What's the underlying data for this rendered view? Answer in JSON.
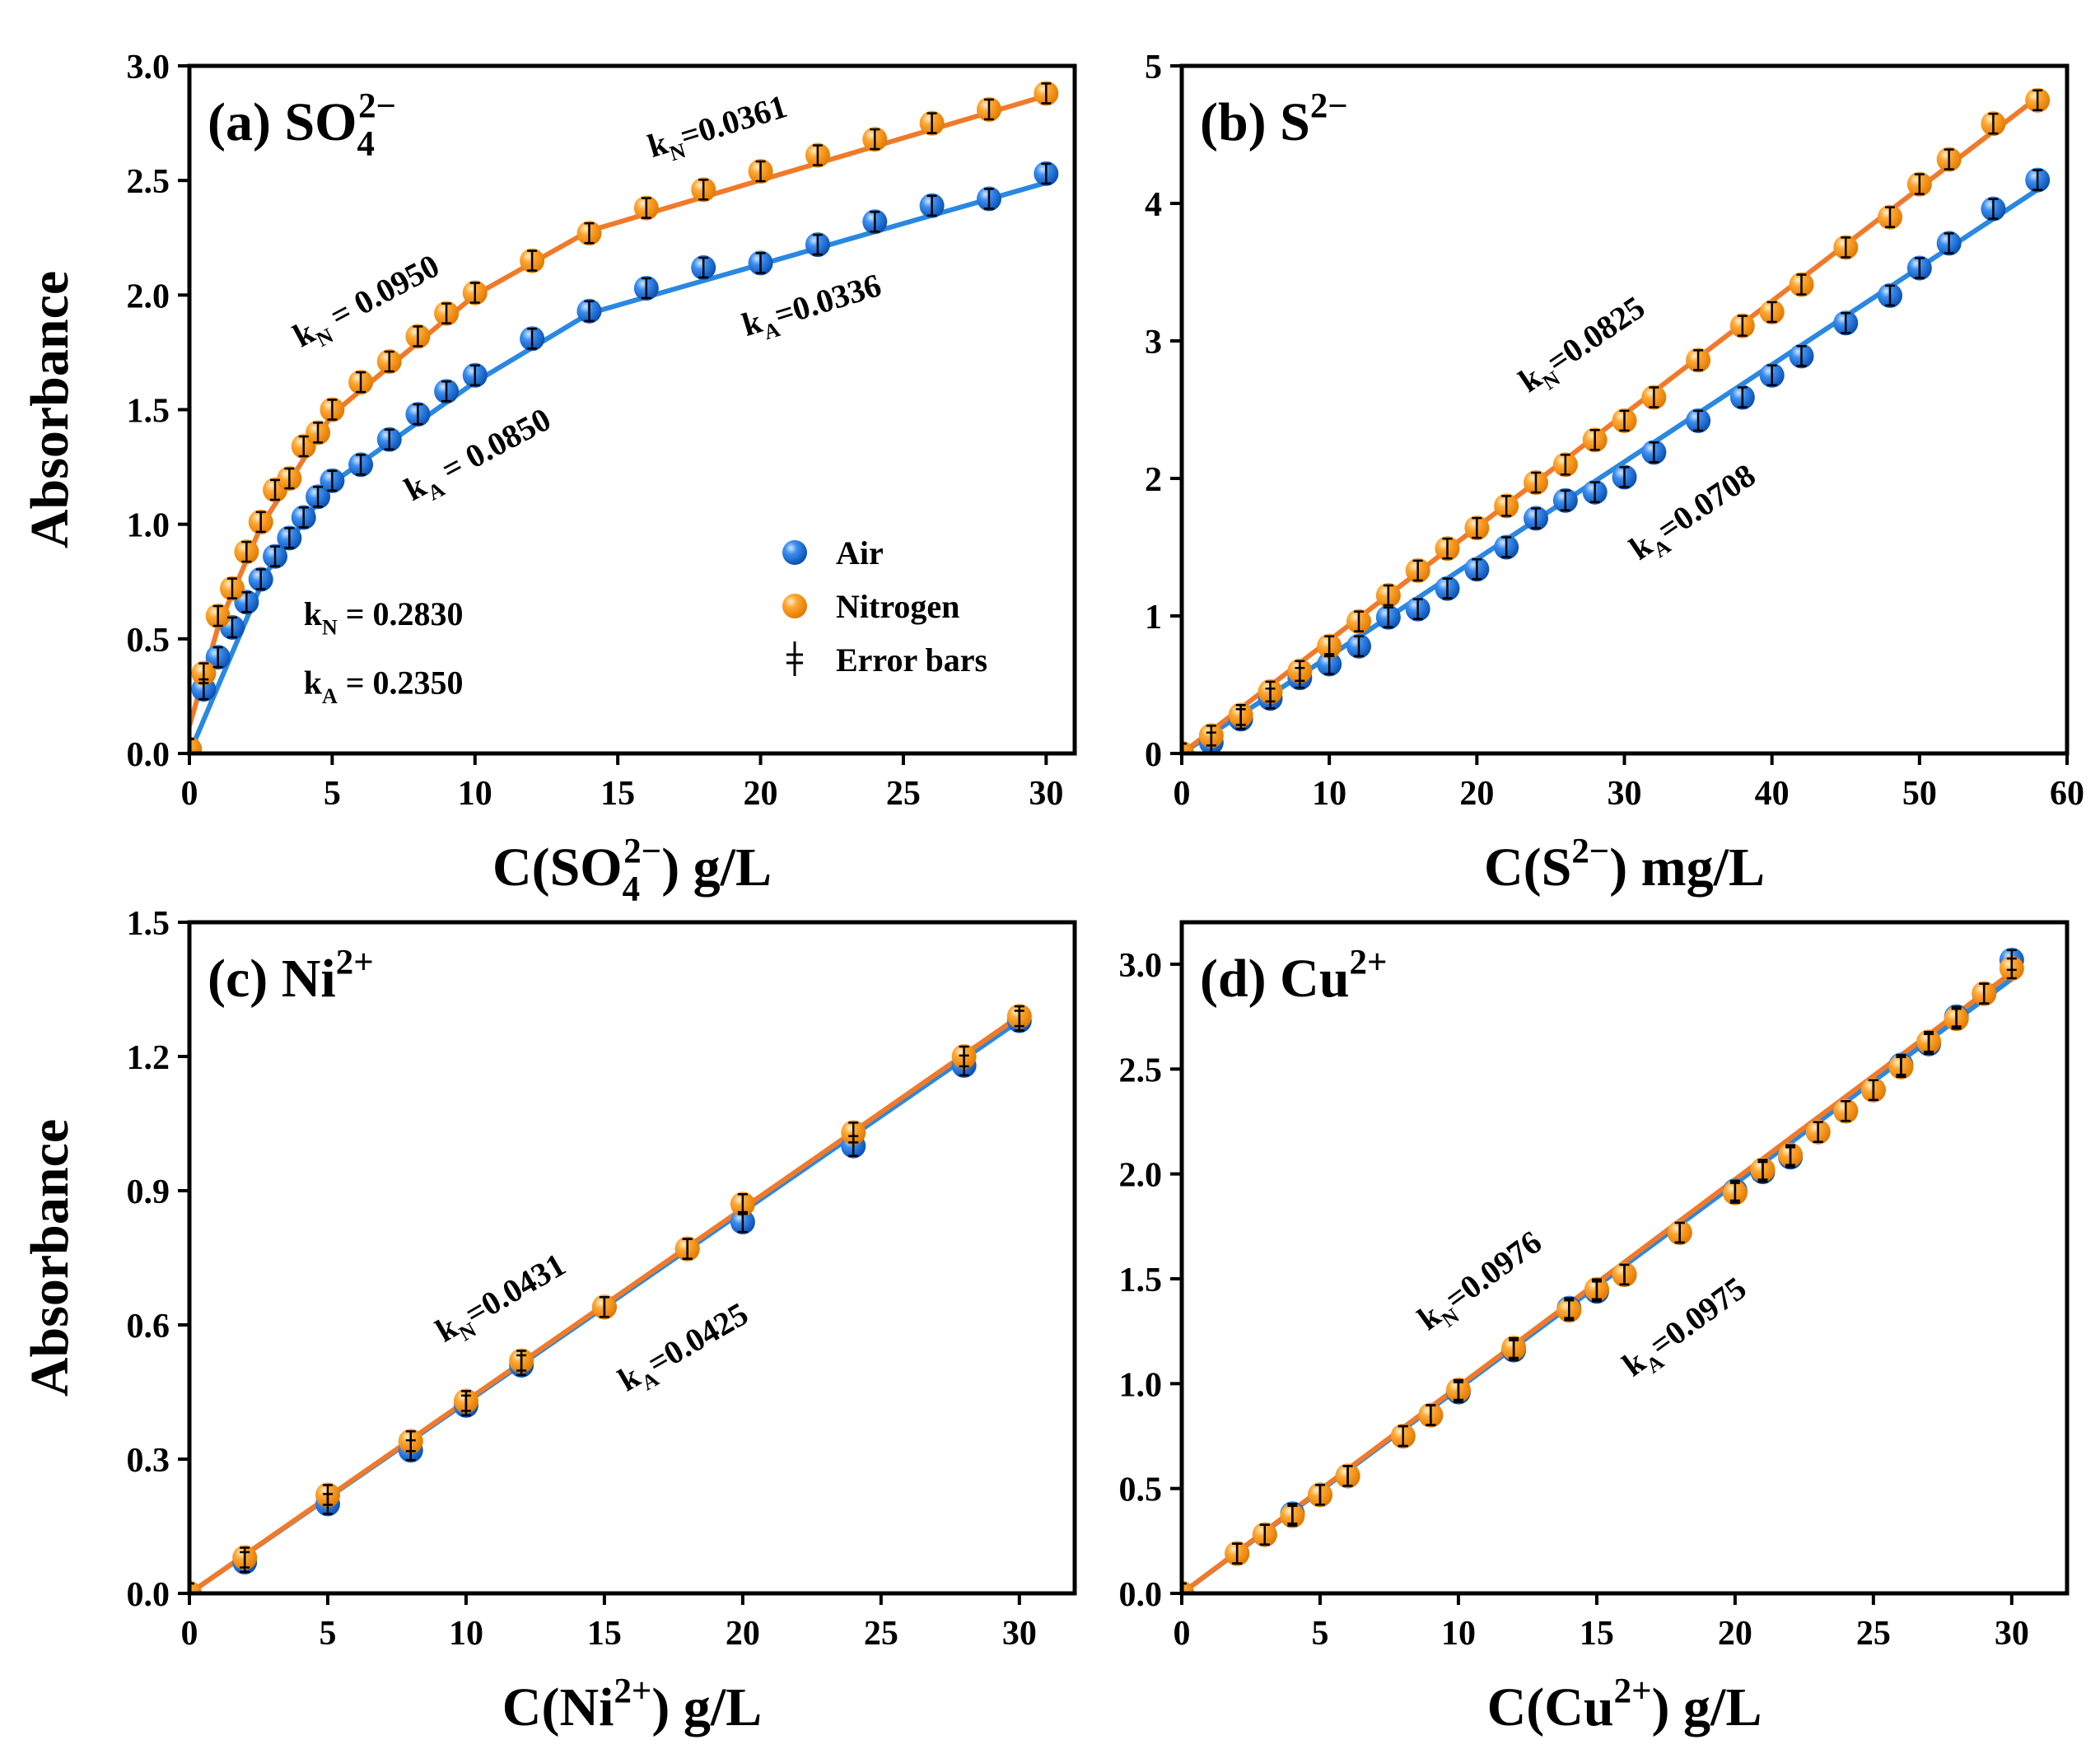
{
  "colors": {
    "air": "#1f6fd6",
    "air_line": "#2a88e0",
    "nitrogen": "#ff9a1f",
    "nitrogen_line": "#f07a2a",
    "error_bar": "#000000"
  },
  "chart_data": [
    {
      "id": "a",
      "type": "scatter",
      "title": {
        "main": "(a) SO",
        "sub": "4",
        "sup": "2−"
      },
      "xlabel": {
        "main": "C(SO",
        "sub": "4",
        "sup": "2−",
        "tail": ") g/L"
      },
      "ylabel": "Absorbance",
      "xlim": [
        0,
        31
      ],
      "ylim": [
        0,
        3.0
      ],
      "xticks": [
        0,
        5,
        10,
        15,
        20,
        25,
        30
      ],
      "yticks": [
        0.0,
        0.5,
        1.0,
        1.5,
        2.0,
        2.5,
        3.0
      ],
      "xtick_labels": [
        "0",
        "5",
        "10",
        "15",
        "20",
        "25",
        "30"
      ],
      "ytick_labels": [
        "0.0",
        "0.5",
        "1.0",
        "1.5",
        "2.0",
        "2.5",
        "3.0"
      ],
      "series": [
        {
          "name": "Air",
          "x": [
            0,
            0.5,
            1,
            1.5,
            2,
            2.5,
            3,
            3.5,
            4,
            4.5,
            5,
            6,
            7,
            8,
            9,
            10,
            12,
            14,
            16,
            18,
            20,
            22,
            24,
            26,
            28,
            30
          ],
          "y": [
            0.02,
            0.28,
            0.42,
            0.55,
            0.66,
            0.76,
            0.86,
            0.94,
            1.03,
            1.12,
            1.19,
            1.26,
            1.37,
            1.48,
            1.58,
            1.65,
            1.81,
            1.93,
            2.03,
            2.12,
            2.14,
            2.22,
            2.32,
            2.39,
            2.42,
            2.53
          ],
          "fit": [
            [
              0,
              0
            ],
            [
              2.7,
              0.79
            ],
            [
              5,
              1.18
            ],
            [
              10,
              1.62
            ],
            [
              14,
              1.92
            ],
            [
              30,
              2.49
            ]
          ]
        },
        {
          "name": "Nitrogen",
          "x": [
            0,
            0.5,
            1,
            1.5,
            2,
            2.5,
            3,
            3.5,
            4,
            4.5,
            5,
            6,
            7,
            8,
            9,
            10,
            12,
            14,
            16,
            18,
            20,
            22,
            24,
            26,
            28,
            30
          ],
          "y": [
            0.02,
            0.35,
            0.6,
            0.72,
            0.88,
            1.01,
            1.15,
            1.2,
            1.34,
            1.4,
            1.5,
            1.62,
            1.71,
            1.82,
            1.92,
            2.01,
            2.15,
            2.27,
            2.38,
            2.46,
            2.54,
            2.61,
            2.68,
            2.75,
            2.81,
            2.88
          ],
          "fit": [
            [
              0,
              0.12
            ],
            [
              1,
              0.55
            ],
            [
              2.5,
              0.99
            ],
            [
              5,
              1.48
            ],
            [
              10,
              2.0
            ],
            [
              14,
              2.28
            ],
            [
              30,
              2.87
            ]
          ]
        }
      ],
      "annotations": [
        {
          "text": "k",
          "sub": "N",
          "tail": " = 0.2830",
          "x": 4,
          "y": 0.56,
          "angle": 0
        },
        {
          "text": "k",
          "sub": "A",
          "tail": " = 0.2350",
          "x": 4,
          "y": 0.26,
          "angle": 0
        },
        {
          "text": "k",
          "sub": "N",
          "tail": " = 0.0950",
          "x": 3.9,
          "y": 1.77,
          "angle": -28
        },
        {
          "text": "k",
          "sub": "A",
          "tail": " = 0.0850",
          "x": 7.8,
          "y": 1.1,
          "angle": -28
        },
        {
          "text": "k",
          "sub": "N",
          "tail": "=0.0361",
          "x": 16.2,
          "y": 2.6,
          "angle": -17
        },
        {
          "text": "k",
          "sub": "A",
          "tail": "=0.0336",
          "x": 19.5,
          "y": 1.82,
          "angle": -17
        }
      ],
      "legend": {
        "position": "lower-right",
        "items": [
          "Air",
          "Nitrogen",
          "Error bars"
        ]
      }
    },
    {
      "id": "b",
      "type": "scatter",
      "title": {
        "main": "(b) S",
        "sub": "",
        "sup": "2−"
      },
      "xlabel": {
        "main": "C(S",
        "sub": "",
        "sup": "2−",
        "tail": ") mg/L"
      },
      "ylabel": "",
      "xlim": [
        0,
        60
      ],
      "ylim": [
        0,
        5
      ],
      "xticks": [
        0,
        10,
        20,
        30,
        40,
        50,
        60
      ],
      "yticks": [
        0,
        1,
        2,
        3,
        4,
        5
      ],
      "xtick_labels": [
        "0",
        "10",
        "20",
        "30",
        "40",
        "50",
        "60"
      ],
      "ytick_labels": [
        "0",
        "1",
        "2",
        "3",
        "4",
        "5"
      ],
      "series": [
        {
          "name": "Air",
          "x": [
            0,
            2,
            4,
            6,
            8,
            10,
            12,
            14,
            16,
            18,
            20,
            22,
            24,
            26,
            28,
            30,
            32,
            35,
            38,
            40,
            42,
            45,
            48,
            50,
            52,
            55,
            58
          ],
          "y": [
            0,
            0.08,
            0.25,
            0.4,
            0.55,
            0.65,
            0.78,
            0.99,
            1.05,
            1.2,
            1.34,
            1.5,
            1.71,
            1.84,
            1.9,
            2.01,
            2.19,
            2.42,
            2.59,
            2.75,
            2.89,
            3.13,
            3.33,
            3.53,
            3.71,
            3.96,
            4.17
          ],
          "fit": [
            [
              0,
              0
            ],
            [
              58,
              4.1
            ]
          ]
        },
        {
          "name": "Nitrogen",
          "x": [
            0,
            2,
            4,
            6,
            8,
            10,
            12,
            14,
            16,
            18,
            20,
            22,
            24,
            26,
            28,
            30,
            32,
            35,
            38,
            40,
            42,
            45,
            48,
            50,
            52,
            55,
            58
          ],
          "y": [
            0,
            0.13,
            0.28,
            0.45,
            0.6,
            0.78,
            0.96,
            1.15,
            1.33,
            1.49,
            1.64,
            1.8,
            1.97,
            2.1,
            2.28,
            2.42,
            2.59,
            2.86,
            3.11,
            3.21,
            3.41,
            3.68,
            3.9,
            4.14,
            4.32,
            4.58,
            4.75
          ],
          "fit": [
            [
              0,
              0
            ],
            [
              58,
              4.77
            ]
          ]
        }
      ],
      "annotations": [
        {
          "text": "k",
          "sub": "N",
          "tail": "=0.0825",
          "x": 23.5,
          "y": 2.62,
          "angle": -34
        },
        {
          "text": "k",
          "sub": "A",
          "tail": "=0.0708",
          "x": 31,
          "y": 1.4,
          "angle": -34
        }
      ]
    },
    {
      "id": "c",
      "type": "scatter",
      "title": {
        "main": "(c) Ni",
        "sub": "",
        "sup": "2+"
      },
      "xlabel": {
        "main": "C(Ni",
        "sub": "",
        "sup": "2+",
        "tail": ") g/L"
      },
      "ylabel": "Absorbance",
      "xlim": [
        0,
        32
      ],
      "ylim": [
        0,
        1.5
      ],
      "xticks": [
        0,
        5,
        10,
        15,
        20,
        25,
        30
      ],
      "yticks": [
        0.0,
        0.3,
        0.6,
        0.9,
        1.2,
        1.5
      ],
      "xtick_labels": [
        "0",
        "5",
        "10",
        "15",
        "20",
        "25",
        "30"
      ],
      "ytick_labels": [
        "0.0",
        "0.3",
        "0.6",
        "0.9",
        "1.2",
        "1.5"
      ],
      "series": [
        {
          "name": "Air",
          "x": [
            0,
            2,
            5,
            8,
            10,
            12,
            15,
            18,
            20,
            24,
            28,
            30
          ],
          "y": [
            0.0,
            0.07,
            0.2,
            0.32,
            0.42,
            0.51,
            0.64,
            0.77,
            0.83,
            1.0,
            1.18,
            1.28
          ],
          "fit": [
            [
              0,
              0
            ],
            [
              30,
              1.28
            ]
          ]
        },
        {
          "name": "Nitrogen",
          "x": [
            0,
            2,
            5,
            8,
            10,
            12,
            15,
            18,
            20,
            24,
            28,
            30
          ],
          "y": [
            0.0,
            0.08,
            0.22,
            0.34,
            0.43,
            0.52,
            0.64,
            0.77,
            0.87,
            1.03,
            1.2,
            1.29
          ],
          "fit": [
            [
              0,
              0
            ],
            [
              30,
              1.29
            ]
          ]
        }
      ],
      "annotations": [
        {
          "text": "k",
          "sub": "N",
          "tail": "=0.0431",
          "x": 9.2,
          "y": 0.56,
          "angle": -30
        },
        {
          "text": "k",
          "sub": "A",
          "tail": "=0.0425",
          "x": 15.8,
          "y": 0.45,
          "angle": -30
        }
      ]
    },
    {
      "id": "d",
      "type": "scatter",
      "title": {
        "main": "(d) Cu",
        "sub": "",
        "sup": "2+"
      },
      "xlabel": {
        "main": "C(Cu",
        "sub": "",
        "sup": "2+",
        "tail": ") g/L"
      },
      "ylabel": "",
      "xlim": [
        0,
        32
      ],
      "ylim": [
        0,
        3.2
      ],
      "xticks": [
        0,
        5,
        10,
        15,
        20,
        25,
        30
      ],
      "yticks": [
        0.0,
        0.5,
        1.0,
        1.5,
        2.0,
        2.5,
        3.0
      ],
      "xtick_labels": [
        "0",
        "5",
        "10",
        "15",
        "20",
        "25",
        "30"
      ],
      "ytick_labels": [
        "0.0",
        "0.5",
        "1.0",
        "1.5",
        "2.0",
        "2.5",
        "3.0"
      ],
      "series": [
        {
          "name": "Air",
          "x": [
            0,
            2,
            3,
            4,
            5,
            6,
            8,
            9,
            10,
            12,
            14,
            15,
            16,
            18,
            20,
            21,
            22,
            23,
            24,
            25,
            26,
            27,
            28,
            29,
            30
          ],
          "y": [
            0.0,
            0.19,
            0.28,
            0.38,
            0.47,
            0.56,
            0.75,
            0.85,
            0.96,
            1.16,
            1.36,
            1.44,
            1.52,
            1.72,
            1.92,
            2.01,
            2.08,
            2.2,
            2.3,
            2.4,
            2.52,
            2.62,
            2.75,
            2.86,
            3.02
          ],
          "fit": [
            [
              0,
              0
            ],
            [
              30,
              2.93
            ]
          ]
        },
        {
          "name": "Nitrogen",
          "x": [
            0,
            2,
            3,
            4,
            5,
            6,
            8,
            9,
            10,
            12,
            14,
            15,
            16,
            18,
            20,
            21,
            22,
            23,
            24,
            25,
            26,
            27,
            28,
            29,
            30
          ],
          "y": [
            0.0,
            0.19,
            0.28,
            0.37,
            0.47,
            0.56,
            0.75,
            0.85,
            0.97,
            1.17,
            1.35,
            1.45,
            1.52,
            1.72,
            1.91,
            2.02,
            2.09,
            2.2,
            2.3,
            2.4,
            2.51,
            2.63,
            2.74,
            2.86,
            2.98
          ],
          "fit": [
            [
              0,
              0
            ],
            [
              30,
              2.96
            ]
          ]
        }
      ],
      "annotations": [
        {
          "text": "k",
          "sub": "N",
          "tail": "=0.0976",
          "x": 8.9,
          "y": 1.25,
          "angle": -36
        },
        {
          "text": "k",
          "sub": "A",
          "tail": "=0.0975",
          "x": 16.3,
          "y": 1.03,
          "angle": -36
        }
      ]
    }
  ]
}
